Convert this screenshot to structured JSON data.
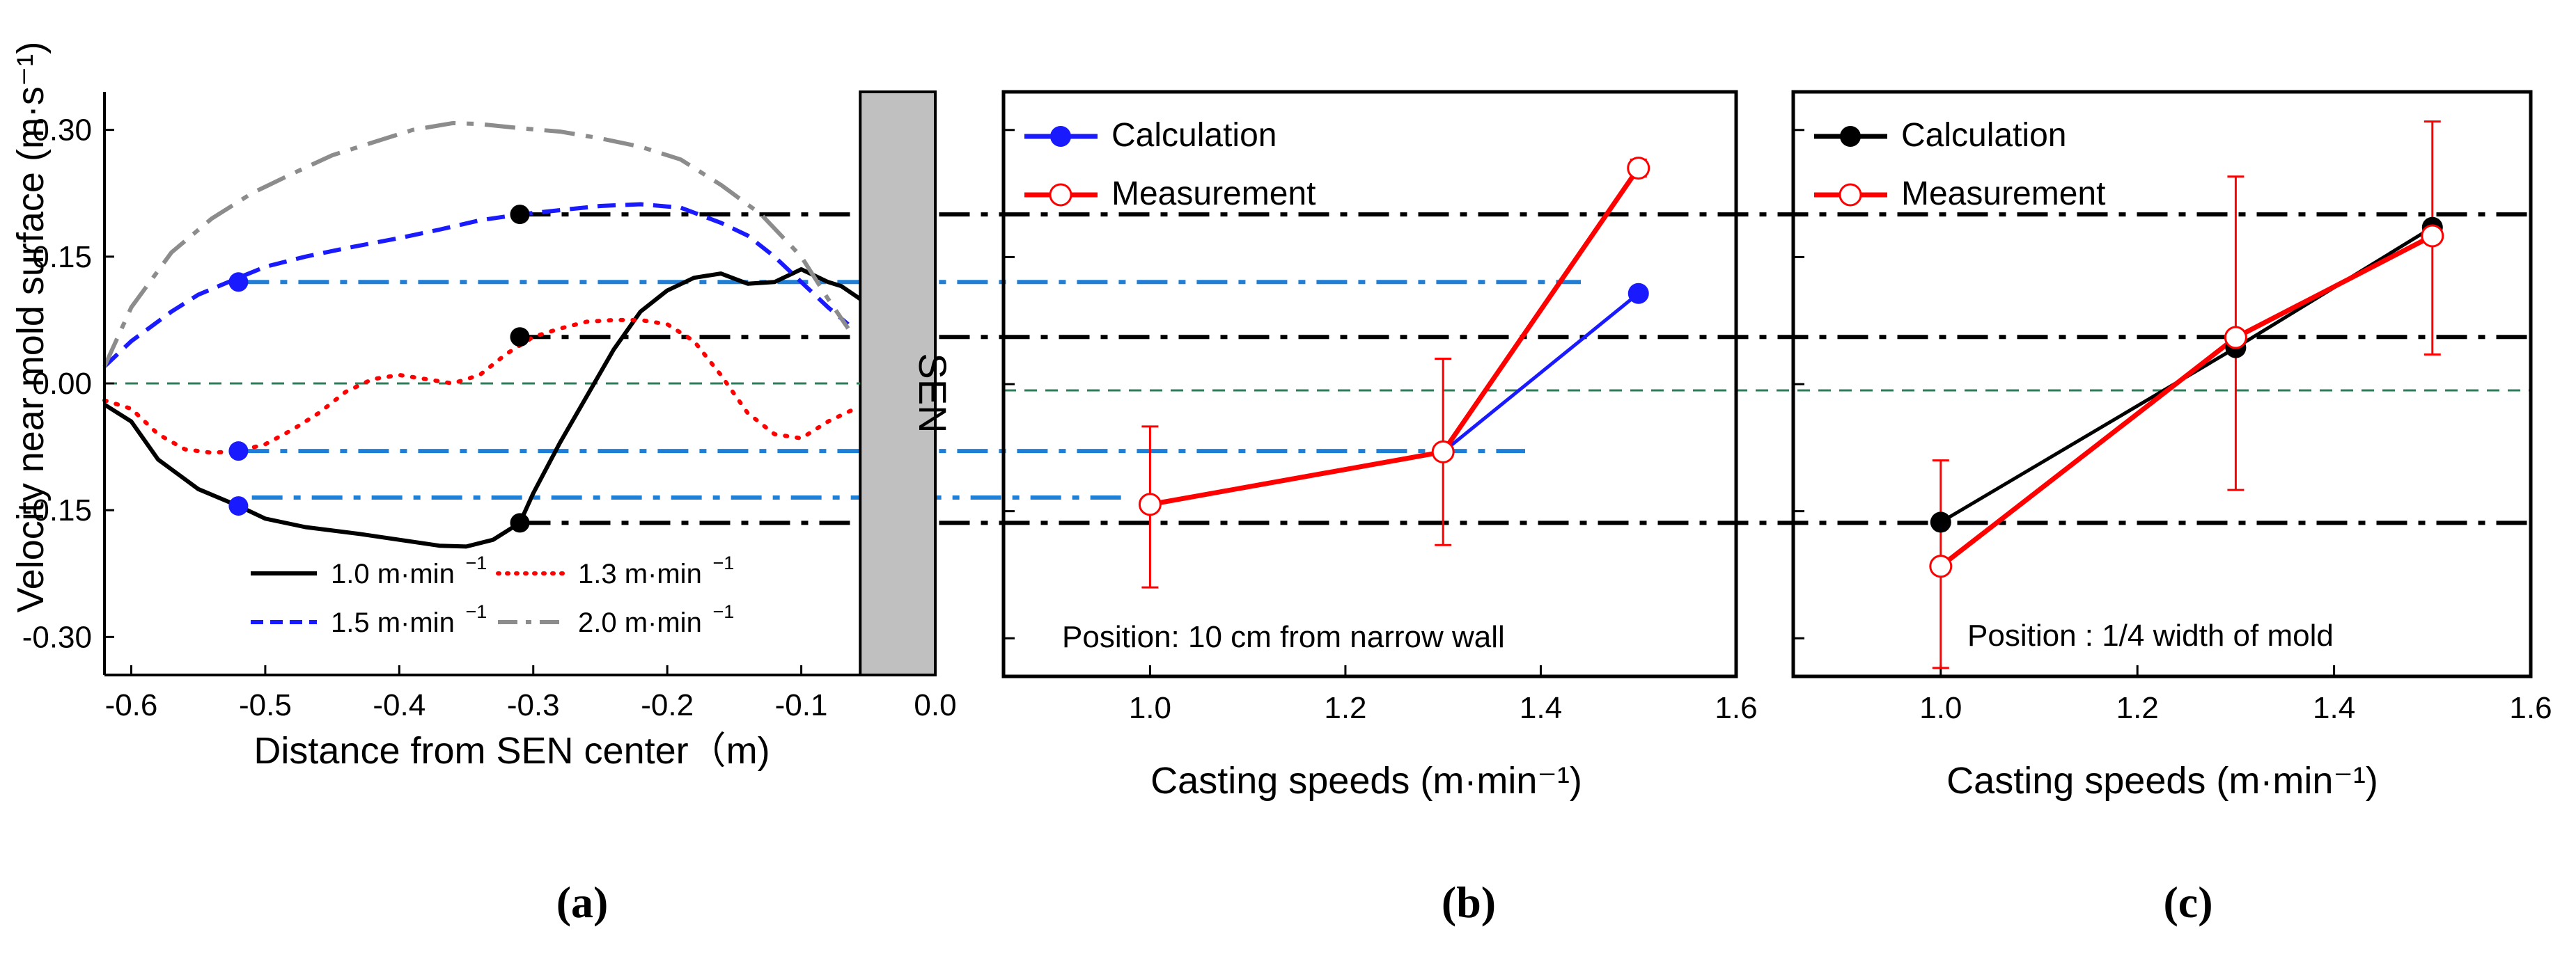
{
  "chart_data": [
    {
      "type": "line",
      "panel": "a",
      "panel_label": "(a)",
      "xlabel": "Distance from SEN center（m)",
      "ylabel": "Velocity near mold surface (m·s⁻¹)",
      "xlim": [
        -0.62,
        0.0
      ],
      "ylim": [
        -0.345,
        0.345
      ],
      "xticks": [
        -0.6,
        -0.5,
        -0.4,
        -0.3,
        -0.2,
        -0.1,
        0.0
      ],
      "xtick_labels": [
        "-0.6",
        "-0.5",
        "-0.4",
        "-0.3",
        "-0.2",
        "-0.1",
        "0.0"
      ],
      "yticks": [
        0.3,
        0.15,
        0.0,
        -0.15,
        -0.3
      ],
      "ytick_labels": [
        "0.30",
        "0.15",
        "0.00",
        "-0.15",
        "-0.30"
      ],
      "sen_label": "SEN",
      "sen_region": [
        -0.056,
        0.0
      ],
      "series": [
        {
          "name": "1.0 m·min⁻¹",
          "label": "1.0 m·min",
          "color": "#000000",
          "style": "solid",
          "x": [
            -0.62,
            -0.6,
            -0.58,
            -0.55,
            -0.52,
            -0.5,
            -0.47,
            -0.43,
            -0.4,
            -0.37,
            -0.35,
            -0.33,
            -0.31,
            -0.3,
            -0.28,
            -0.26,
            -0.24,
            -0.22,
            -0.2,
            -0.18,
            -0.16,
            -0.14,
            -0.12,
            -0.1,
            -0.08,
            -0.07,
            -0.056
          ],
          "y": [
            -0.025,
            -0.045,
            -0.09,
            -0.125,
            -0.145,
            -0.16,
            -0.17,
            -0.178,
            -0.185,
            -0.192,
            -0.193,
            -0.185,
            -0.165,
            -0.13,
            -0.07,
            -0.015,
            0.04,
            0.085,
            0.11,
            0.125,
            0.13,
            0.118,
            0.12,
            0.135,
            0.12,
            0.115,
            0.1
          ]
        },
        {
          "name": "1.3 m·min⁻¹",
          "label": "1.3 m·min",
          "color": "#ff0000",
          "style": "dotted",
          "x": [
            -0.62,
            -0.6,
            -0.58,
            -0.56,
            -0.54,
            -0.52,
            -0.5,
            -0.48,
            -0.46,
            -0.44,
            -0.42,
            -0.4,
            -0.38,
            -0.36,
            -0.34,
            -0.32,
            -0.3,
            -0.28,
            -0.26,
            -0.24,
            -0.22,
            -0.2,
            -0.18,
            -0.16,
            -0.14,
            -0.12,
            -0.1,
            -0.08,
            -0.06
          ],
          "y": [
            -0.02,
            -0.03,
            -0.06,
            -0.078,
            -0.082,
            -0.08,
            -0.072,
            -0.055,
            -0.035,
            -0.01,
            0.005,
            0.01,
            0.005,
            0.0,
            0.01,
            0.035,
            0.055,
            0.065,
            0.073,
            0.075,
            0.075,
            0.07,
            0.05,
            0.01,
            -0.035,
            -0.06,
            -0.065,
            -0.045,
            -0.03
          ]
        },
        {
          "name": "1.5 m·min⁻¹",
          "label": "1.5 m·min",
          "color": "#1a1aff",
          "style": "dashed",
          "x": [
            -0.62,
            -0.6,
            -0.57,
            -0.55,
            -0.52,
            -0.5,
            -0.47,
            -0.44,
            -0.4,
            -0.37,
            -0.34,
            -0.31,
            -0.28,
            -0.25,
            -0.22,
            -0.19,
            -0.16,
            -0.14,
            -0.12,
            -0.1,
            -0.08,
            -0.065
          ],
          "y": [
            0.02,
            0.05,
            0.085,
            0.105,
            0.125,
            0.138,
            0.15,
            0.16,
            0.172,
            0.182,
            0.193,
            0.2,
            0.205,
            0.21,
            0.212,
            0.208,
            0.19,
            0.175,
            0.15,
            0.12,
            0.09,
            0.07
          ]
        },
        {
          "name": "2.0 m·min⁻¹",
          "label": "2.0 m·min",
          "color": "#8c8c8c",
          "style": "dashdot",
          "x": [
            -0.62,
            -0.6,
            -0.57,
            -0.54,
            -0.51,
            -0.48,
            -0.45,
            -0.42,
            -0.39,
            -0.36,
            -0.34,
            -0.31,
            -0.28,
            -0.25,
            -0.22,
            -0.19,
            -0.16,
            -0.13,
            -0.1,
            -0.08,
            -0.065
          ],
          "y": [
            0.02,
            0.09,
            0.155,
            0.195,
            0.225,
            0.248,
            0.27,
            0.285,
            0.3,
            0.308,
            0.307,
            0.302,
            0.298,
            0.29,
            0.28,
            0.265,
            0.235,
            0.2,
            0.15,
            0.1,
            0.065
          ]
        }
      ],
      "markers": [
        {
          "x": -0.31,
          "y": 0.2,
          "color": "#000000"
        },
        {
          "x": -0.31,
          "y": 0.055,
          "color": "#000000"
        },
        {
          "x": -0.31,
          "y": -0.165,
          "color": "#000000"
        },
        {
          "x": -0.52,
          "y": 0.12,
          "color": "#1a1aff"
        },
        {
          "x": -0.52,
          "y": -0.08,
          "color": "#1a1aff"
        },
        {
          "x": -0.52,
          "y": -0.145,
          "color": "#1a1aff"
        }
      ],
      "zero_line_color": "#2e7d5a",
      "legend": "bottom"
    },
    {
      "type": "line",
      "panel": "b",
      "panel_label": "(b)",
      "xlabel": "Casting speeds (m·min⁻¹)",
      "ylabel": "",
      "xlim": [
        0.85,
        1.6
      ],
      "ylim": [
        -0.345,
        0.345
      ],
      "xticks": [
        1.0,
        1.2,
        1.4,
        1.6
      ],
      "xtick_labels": [
        "1.0",
        "1.2",
        "1.4",
        "1.6"
      ],
      "annotation": "Position: 10 cm from narrow wall",
      "series": [
        {
          "name": "Calculation",
          "color": "#1a1aff",
          "marker": "filled",
          "x": [
            1.0,
            1.3,
            1.5
          ],
          "y": [
            -0.142,
            -0.08,
            0.107
          ]
        },
        {
          "name": "Measurement",
          "color": "#ff0000",
          "marker": "open",
          "x": [
            1.0,
            1.3,
            1.5
          ],
          "y": [
            -0.142,
            -0.08,
            0.255
          ],
          "err_low": [
            -0.24,
            -0.19,
            0.245
          ],
          "err_high": [
            -0.05,
            0.03,
            0.265
          ]
        }
      ],
      "legend": "top-left"
    },
    {
      "type": "line",
      "panel": "c",
      "panel_label": "(c)",
      "xlabel": "Casting speeds (m·min⁻¹)",
      "ylabel": "",
      "xlim": [
        0.85,
        1.6
      ],
      "ylim": [
        -0.345,
        0.345
      ],
      "xticks": [
        1.0,
        1.2,
        1.4,
        1.6
      ],
      "xtick_labels": [
        "1.0",
        "1.2",
        "1.4",
        "1.6"
      ],
      "annotation": "Position : 1/4 width of mold",
      "series": [
        {
          "name": "Calculation",
          "color": "#000000",
          "marker": "filled",
          "x": [
            1.0,
            1.3,
            1.5
          ],
          "y": [
            -0.163,
            0.043,
            0.185
          ]
        },
        {
          "name": "Measurement",
          "color": "#ff0000",
          "marker": "open",
          "x": [
            1.0,
            1.3,
            1.5
          ],
          "y": [
            -0.215,
            0.055,
            0.175
          ],
          "err_low": [
            -0.335,
            -0.125,
            0.035
          ],
          "err_high": [
            -0.09,
            0.245,
            0.31
          ]
        }
      ],
      "legend": "top-left"
    }
  ],
  "guide_lines": [
    {
      "y": 0.2,
      "color": "#000000"
    },
    {
      "y": 0.12,
      "color": "#1f7fd6"
    },
    {
      "y": 0.055,
      "color": "#000000"
    },
    {
      "y": 0.0,
      "color": "#2e7d5a"
    },
    {
      "y": -0.08,
      "color": "#1f7fd6"
    },
    {
      "y": -0.135,
      "color": "#1f7fd6"
    },
    {
      "y": -0.165,
      "color": "#000000"
    }
  ]
}
